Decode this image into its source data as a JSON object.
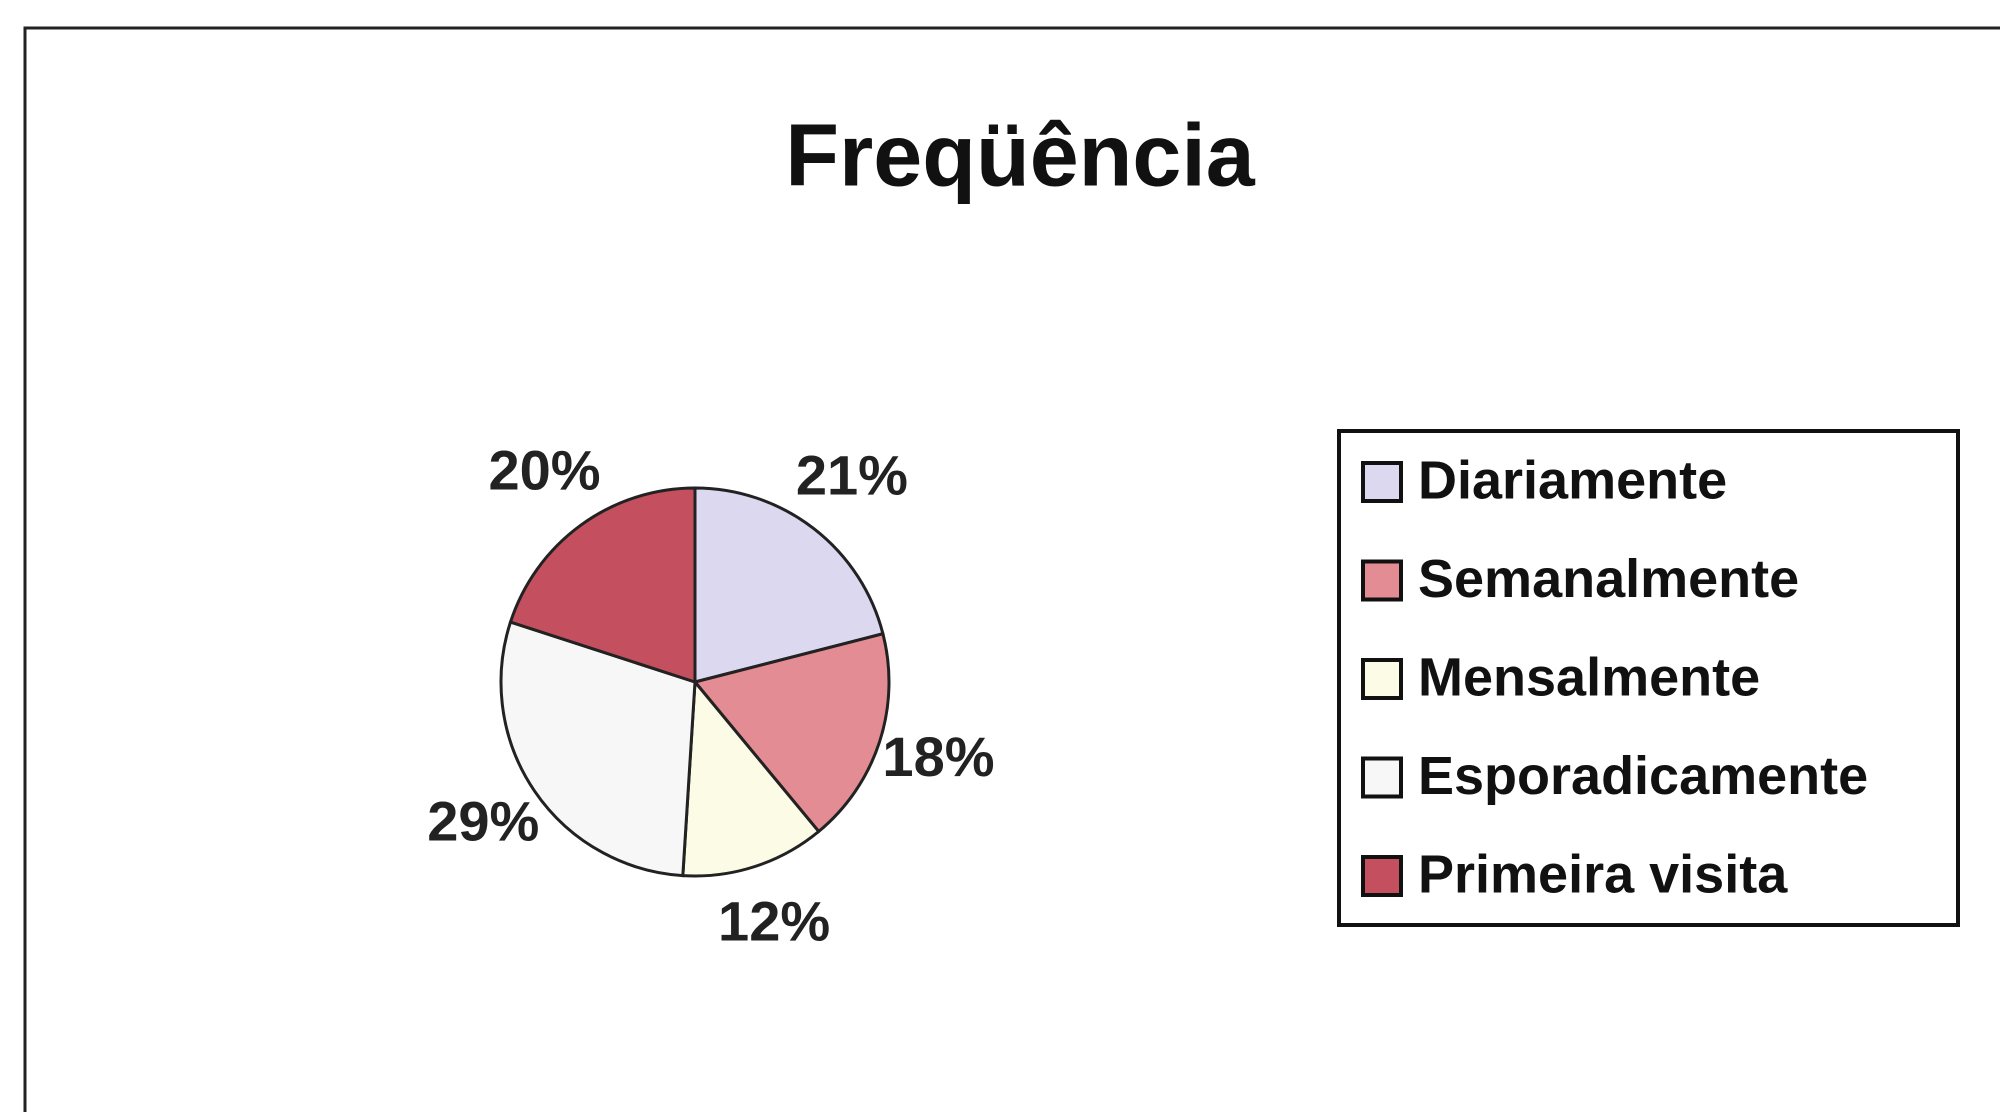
{
  "chart_data": {
    "type": "pie",
    "title": "Freqüência",
    "categories": [
      "Diariamente",
      "Semanalmente",
      "Mensalmente",
      "Esporadicamente",
      "Primeira visita"
    ],
    "values": [
      21,
      18,
      12,
      29,
      20
    ],
    "value_labels": [
      "21%",
      "18%",
      "12%",
      "29%",
      "20%"
    ],
    "colors": [
      "#dcd8f0",
      "#e48c93",
      "#fbfbe6",
      "#f7f7f7",
      "#c4505f"
    ],
    "legend": "right"
  }
}
